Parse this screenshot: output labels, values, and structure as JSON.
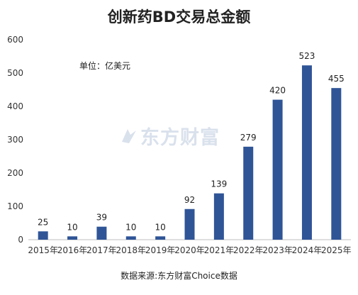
{
  "chart_data": {
    "type": "bar",
    "title": "创新药BD交易总金额",
    "unit_label": "单位：亿美元",
    "source": "数据来源:东方财富Choice数据",
    "watermark": "东方财富",
    "categories": [
      "2015年",
      "2016年",
      "2017年",
      "2018年",
      "2019年",
      "2020年",
      "2021年",
      "2022年",
      "2023年",
      "2024年",
      "2025年"
    ],
    "values": [
      25,
      10,
      39,
      10,
      10,
      92,
      139,
      279,
      420,
      523,
      455
    ],
    "value_labels": [
      "25",
      "10",
      "39",
      "10",
      "10",
      "92",
      "139",
      "279",
      "420",
      "523",
      "455"
    ],
    "yticks": [
      "0",
      "100",
      "200",
      "300",
      "400",
      "500",
      "600"
    ],
    "ylim": [
      0,
      600
    ],
    "bar_color": "#2f5597",
    "grid": false,
    "legend": "none"
  }
}
